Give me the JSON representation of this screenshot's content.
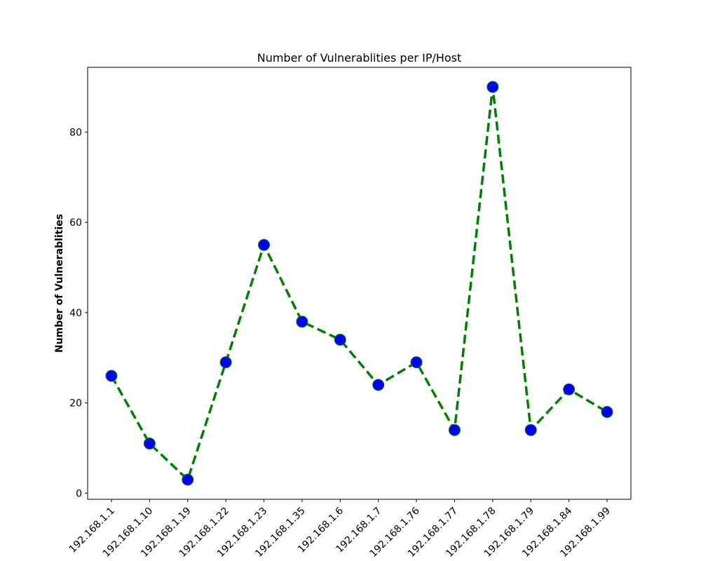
{
  "chart_data": {
    "type": "line",
    "title": "Number of Vulnerablities per IP/Host",
    "xlabel": "",
    "ylabel": "Number of Vulnerablities",
    "categories": [
      "192.168.1.1",
      "192.168.1.10",
      "192.168.1.19",
      "192.168.1.22",
      "192.168.1.23",
      "192.168.1.35",
      "192.168.1.6",
      "192.168.1.7",
      "192.168.1.76",
      "192.168.1.77",
      "192.168.1.78",
      "192.168.1.79",
      "192.168.1.84",
      "192.168.1.99"
    ],
    "series": [
      {
        "values": [
          26,
          11,
          3,
          29,
          55,
          38,
          34,
          24,
          29,
          14,
          90,
          14,
          23,
          18
        ]
      }
    ],
    "yticks": [
      0,
      20,
      40,
      60,
      80
    ],
    "ylim": [
      -1.35,
      94.35
    ],
    "grid": false,
    "line_style": "dashed",
    "colors": {
      "line": "#008000",
      "marker_fill": "#0000ff",
      "marker_edge": "#008000",
      "axes": "#000000"
    }
  }
}
